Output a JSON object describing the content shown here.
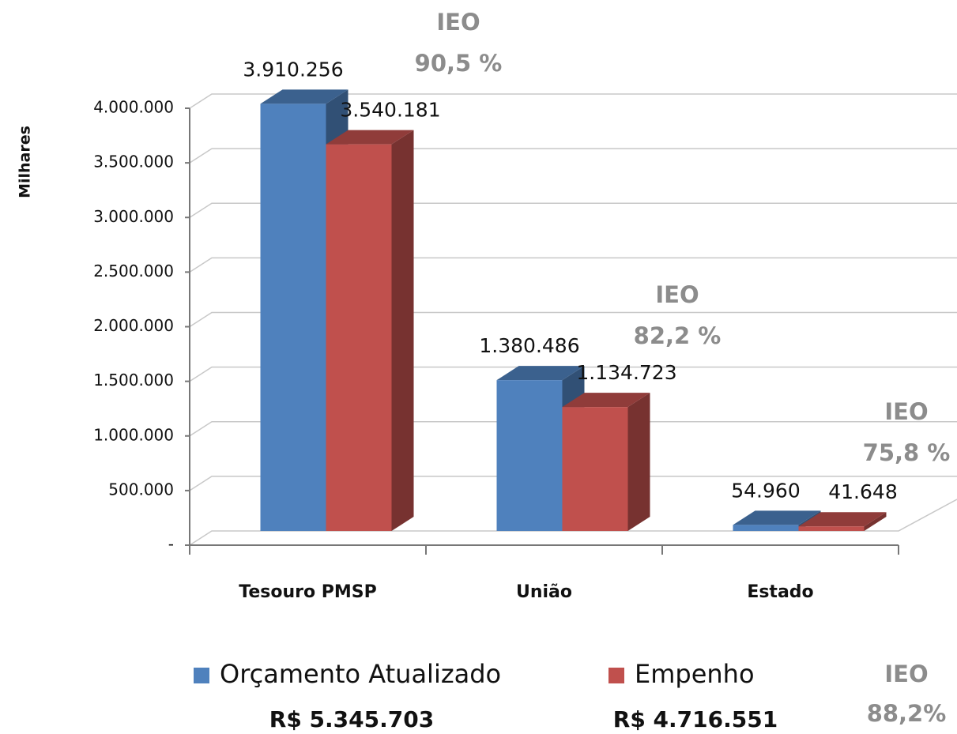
{
  "chart_data": {
    "type": "bar3d",
    "y_axis_label": "Milhares",
    "categories": [
      "Tesouro  PMSP",
      "União",
      "Estado"
    ],
    "series": [
      {
        "name": "Orçamento Atualizado",
        "color": "#4f81bd",
        "values": [
          3910256,
          1380486,
          54960
        ],
        "value_labels": [
          "3.910.256",
          "1.380.486",
          "54.960"
        ],
        "total_label": "R$ 5.345.703"
      },
      {
        "name": "Empenho",
        "color": "#c0504d",
        "values": [
          3540181,
          1134723,
          41648
        ],
        "value_labels": [
          "3.540.181",
          "1.134.723",
          "41.648"
        ],
        "total_label": "R$ 4.716.551"
      }
    ],
    "ieo_title": "IEO",
    "ieo_labels": [
      "90,5 %",
      "82,2 %",
      "75,8 %"
    ],
    "overall_ieo_label": "88,2%",
    "ylim": [
      0,
      4000000
    ],
    "yticks": [
      {
        "value": 0,
        "label": "-"
      },
      {
        "value": 500000,
        "label": "500.000"
      },
      {
        "value": 1000000,
        "label": "1.000.000"
      },
      {
        "value": 1500000,
        "label": "1.500.000"
      },
      {
        "value": 2000000,
        "label": "2.000.000"
      },
      {
        "value": 2500000,
        "label": "2.500.000"
      },
      {
        "value": 3000000,
        "label": "3.000.000"
      },
      {
        "value": 3500000,
        "label": "3.500.000"
      },
      {
        "value": 4000000,
        "label": "4.000.000"
      }
    ],
    "grid": true
  }
}
